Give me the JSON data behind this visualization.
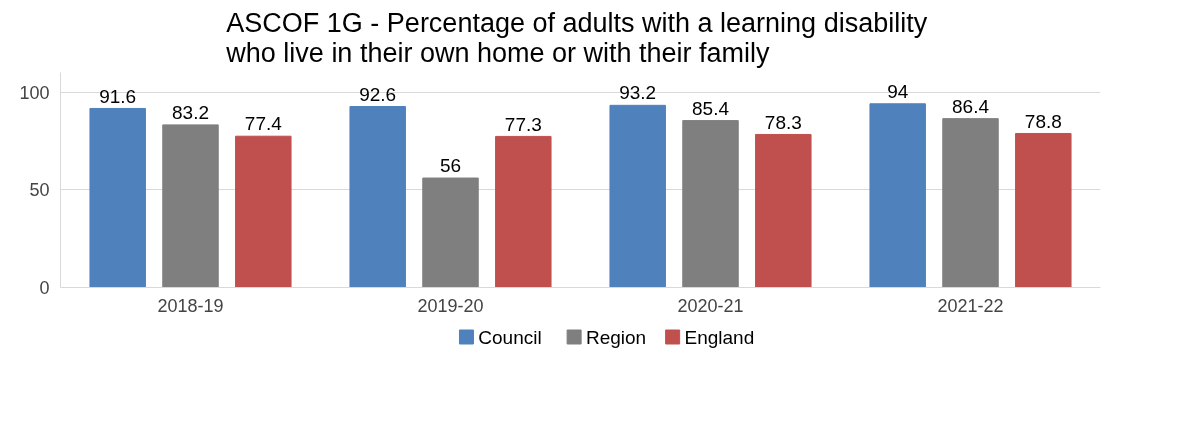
{
  "chart_data": {
    "type": "bar",
    "title": "ASCOF 1G  - Percentage of adults with a learning disability who live in their own home or with their family",
    "categories": [
      "2018-19",
      "2019-20",
      "2020-21",
      "2021-22"
    ],
    "series": [
      {
        "name": "Council",
        "color": "#4f81bd",
        "values": [
          91.6,
          92.6,
          93.2,
          94
        ]
      },
      {
        "name": "Region",
        "color": "#7f7f7f",
        "values": [
          83.2,
          56,
          85.4,
          86.4
        ]
      },
      {
        "name": "England",
        "color": "#c0504d",
        "values": [
          77.4,
          77.3,
          78.3,
          78.8
        ]
      }
    ],
    "ylim": [
      0,
      110
    ],
    "yticks": [
      0,
      50,
      100
    ],
    "grid": "y",
    "legend": "bottom",
    "data_labels": true
  }
}
